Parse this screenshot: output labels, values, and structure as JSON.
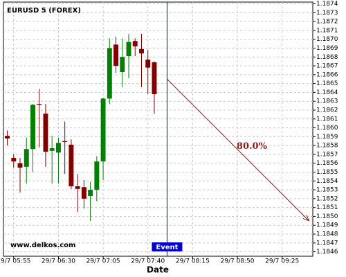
{
  "chart_data": {
    "type": "candlestick",
    "title": "EURUSD 5 (FOREX)",
    "watermark": "www.delkos.com",
    "x_label": "Date",
    "up_color": "#008000",
    "down_color": "#800000",
    "grid": true,
    "xlim": [
      347,
      589
    ],
    "ylim": [
      1.18455,
      1.18742
    ],
    "xticks": [
      {
        "value": 355,
        "label": "29/7 05:55"
      },
      {
        "value": 390,
        "label": "29/7 06:30"
      },
      {
        "value": 425,
        "label": "29/7 07:05"
      },
      {
        "value": 460,
        "label": "29/7 07:40"
      },
      {
        "value": 495,
        "label": "29/7 08:15"
      },
      {
        "value": 530,
        "label": "29/7 08:50"
      },
      {
        "value": 565,
        "label": "29/7 09:25"
      }
    ],
    "yticks": [
      1.1846,
      1.1847,
      1.1848,
      1.1849,
      {
        "value": 1.185,
        "label": "1.1850"
      },
      1.1851,
      1.1852,
      1.1853,
      1.1854,
      1.1855,
      1.1856,
      1.1857,
      1.1858,
      1.1859,
      {
        "value": 1.186,
        "label": "1.1860"
      },
      1.1861,
      1.1862,
      1.1863,
      1.1864,
      1.1865,
      1.1866,
      1.1867,
      1.1868,
      1.1869,
      {
        "value": 1.187,
        "label": "1.1870"
      },
      1.1871,
      1.1872,
      1.1873,
      1.1874
    ],
    "x": [
      350,
      355,
      360,
      365,
      370,
      375,
      380,
      385,
      390,
      395,
      400,
      405,
      410,
      415,
      420,
      425,
      430,
      435,
      440,
      445,
      450,
      455,
      460,
      465
    ],
    "open": [
      1.18591,
      1.18566,
      1.1856,
      1.18556,
      1.18576,
      1.18627,
      1.18616,
      1.18574,
      1.18572,
      1.18585,
      1.18581,
      1.18534,
      1.18533,
      1.18523,
      1.1853,
      1.18562,
      1.18633,
      1.18694,
      1.18663,
      1.18681,
      1.18698,
      1.18689,
      1.18677,
      1.18674
    ],
    "high": [
      1.18597,
      1.1857,
      1.18566,
      1.18589,
      1.18627,
      1.18644,
      1.18627,
      1.18591,
      1.18589,
      1.18607,
      1.18587,
      1.18548,
      1.18541,
      1.18539,
      1.18568,
      1.18634,
      1.18701,
      1.18703,
      1.18701,
      1.18706,
      1.18701,
      1.18706,
      1.18688,
      1.18675
    ],
    "low": [
      1.1858,
      1.18555,
      1.18527,
      1.18537,
      1.1855,
      1.18578,
      1.18556,
      1.18537,
      1.18537,
      1.18548,
      1.18531,
      1.18505,
      1.18509,
      1.18495,
      1.18517,
      1.18541,
      1.18627,
      1.18662,
      1.18646,
      1.18656,
      1.18681,
      1.18646,
      1.18638,
      1.18616
    ],
    "close": [
      1.18588,
      1.18562,
      1.18555,
      1.18576,
      1.18626,
      1.18626,
      1.18573,
      1.18577,
      1.18583,
      1.18584,
      1.18534,
      1.18531,
      1.1852,
      1.1853,
      1.18562,
      1.18633,
      1.1869,
      1.1867,
      1.1868,
      1.18697,
      1.18692,
      1.18684,
      1.18668,
      1.18638
    ],
    "event": {
      "label": "Event",
      "x": 475,
      "color": "#0000cc"
    },
    "forecast": {
      "label": "80.0%",
      "color": "#8b1a1a",
      "x": [
        475,
        586
      ],
      "y": [
        1.18655,
        1.18495
      ]
    }
  }
}
